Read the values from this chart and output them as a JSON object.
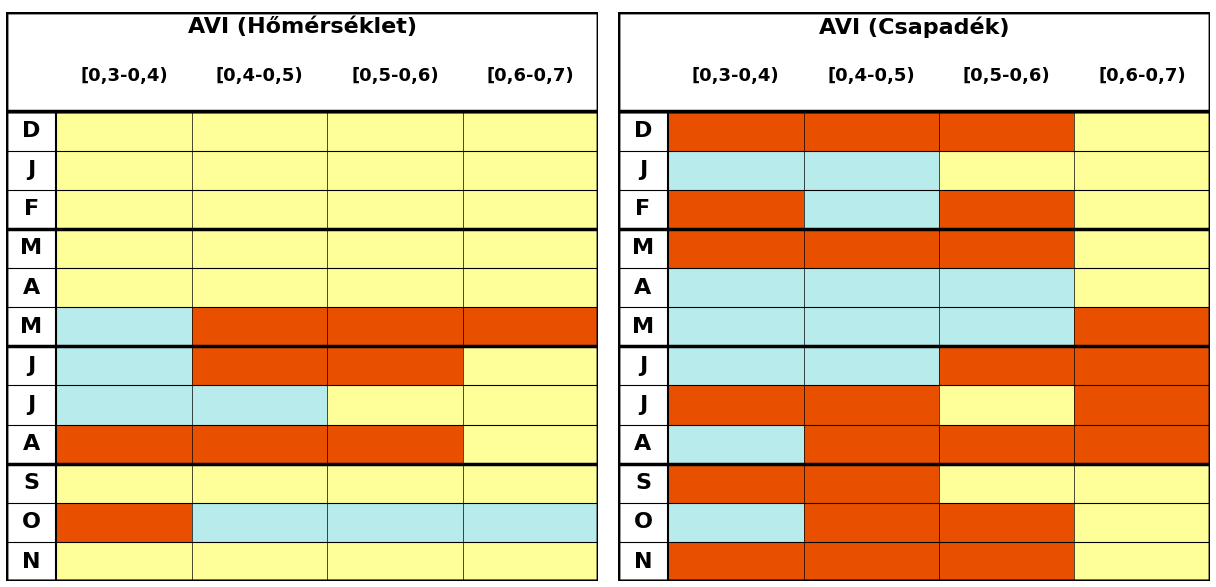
{
  "title_left": "AVI (Hőmérséklet)",
  "title_right": "AVI (Csapadék)",
  "col_labels": [
    "[0,3-0,4)",
    "[0,4-0,5)",
    "[0,5-0,6)",
    "[0,6-0,7)"
  ],
  "colors": {
    "yellow": "#FFFF99",
    "cyan": "#B8ECEC",
    "orange": "#E85000"
  },
  "left_cells": [
    [
      "yellow",
      "yellow",
      "yellow",
      "yellow"
    ],
    [
      "yellow",
      "yellow",
      "yellow",
      "yellow"
    ],
    [
      "yellow",
      "yellow",
      "yellow",
      "yellow"
    ],
    [
      "yellow",
      "yellow",
      "yellow",
      "yellow"
    ],
    [
      "yellow",
      "yellow",
      "yellow",
      "yellow"
    ],
    [
      "cyan",
      "orange",
      "orange",
      "orange"
    ],
    [
      "cyan",
      "orange",
      "orange",
      "yellow"
    ],
    [
      "cyan",
      "cyan",
      "yellow",
      "yellow"
    ],
    [
      "orange",
      "orange",
      "orange",
      "yellow"
    ],
    [
      "yellow",
      "yellow",
      "yellow",
      "yellow"
    ],
    [
      "orange",
      "cyan",
      "cyan",
      "cyan"
    ],
    [
      "yellow",
      "yellow",
      "yellow",
      "yellow"
    ]
  ],
  "right_cells": [
    [
      "orange",
      "orange",
      "orange",
      "yellow"
    ],
    [
      "cyan",
      "cyan",
      "yellow",
      "yellow"
    ],
    [
      "orange",
      "cyan",
      "orange",
      "yellow"
    ],
    [
      "orange",
      "orange",
      "orange",
      "yellow"
    ],
    [
      "cyan",
      "cyan",
      "cyan",
      "yellow"
    ],
    [
      "cyan",
      "cyan",
      "cyan",
      "orange"
    ],
    [
      "cyan",
      "cyan",
      "orange",
      "orange"
    ],
    [
      "orange",
      "orange",
      "yellow",
      "orange"
    ],
    [
      "cyan",
      "orange",
      "orange",
      "orange"
    ],
    [
      "orange",
      "orange",
      "yellow",
      "yellow"
    ],
    [
      "cyan",
      "orange",
      "orange",
      "yellow"
    ],
    [
      "orange",
      "orange",
      "orange",
      "yellow"
    ]
  ],
  "row_labels": [
    "D",
    "J",
    "F",
    "M",
    "A",
    "M",
    "J",
    "J",
    "A",
    "S",
    "O",
    "N"
  ],
  "group_borders": [
    0,
    3,
    6,
    9,
    12
  ],
  "background": "white",
  "border_color": "black",
  "text_color": "black",
  "title_fontsize": 16,
  "col_label_fontsize": 13,
  "row_label_fontsize": 16
}
